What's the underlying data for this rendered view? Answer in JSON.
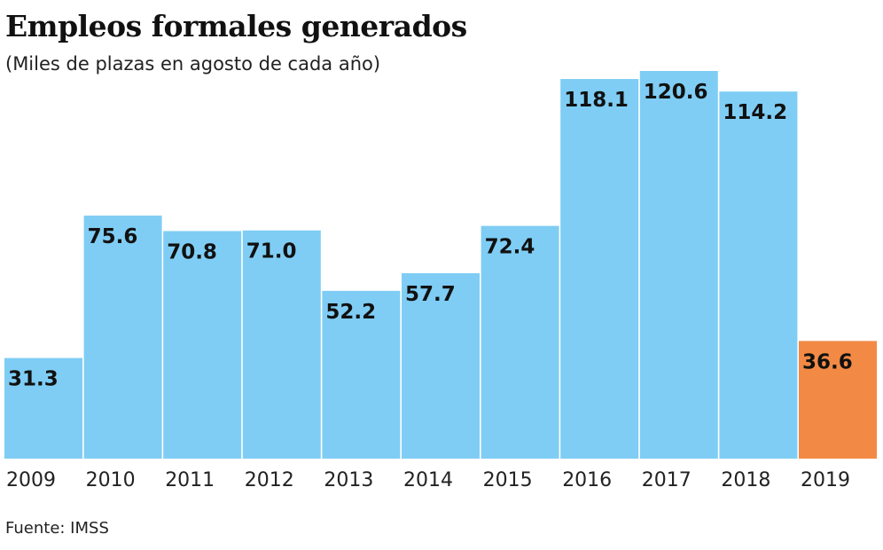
{
  "chart_data": {
    "type": "bar",
    "title": "Empleos formales generados",
    "subtitle": "(Miles de plazas en agosto de cada año)",
    "source": "Fuente: IMSS",
    "categories": [
      "2009",
      "2010",
      "2011",
      "2012",
      "2013",
      "2014",
      "2015",
      "2016",
      "2017",
      "2018",
      "2019"
    ],
    "values": [
      31.3,
      75.6,
      70.8,
      71.0,
      52.2,
      57.7,
      72.4,
      118.1,
      120.6,
      114.2,
      36.6
    ],
    "labels": [
      "31.3",
      "75.6",
      "70.8",
      "71.0",
      "52.2",
      "57.7",
      "72.4",
      "118.1",
      "120.6",
      "114.2",
      "36.6"
    ],
    "colors": {
      "default": "#7fcdf4",
      "highlight": "#f28a45"
    },
    "highlight_index": 10,
    "ylim": [
      0,
      120.6
    ],
    "grid": false
  }
}
